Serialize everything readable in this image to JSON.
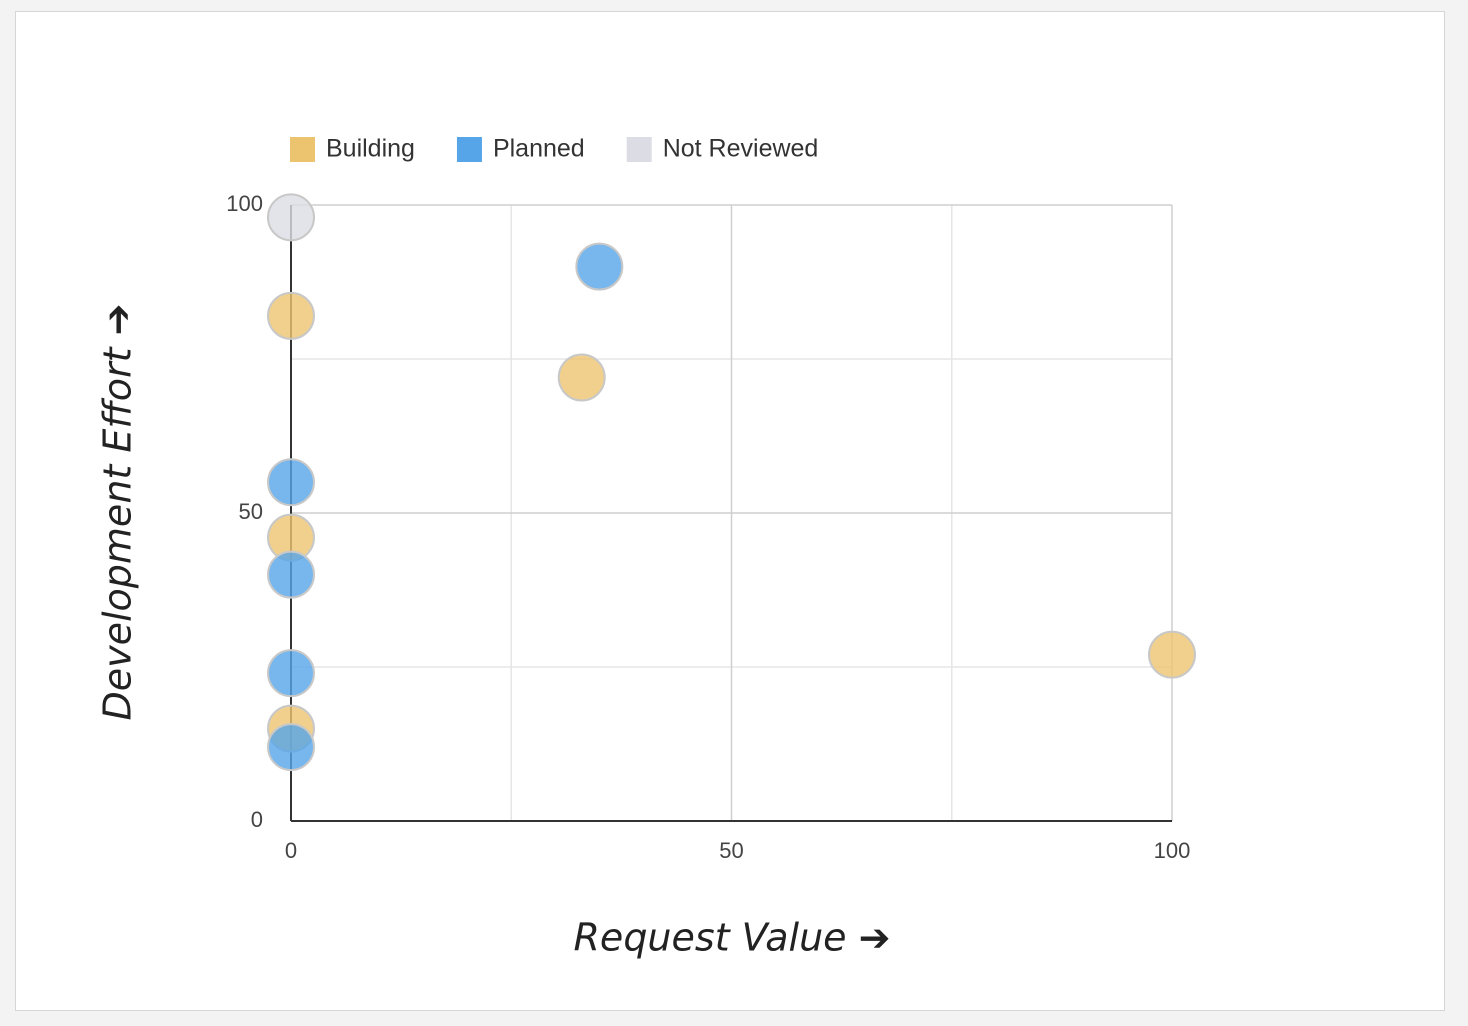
{
  "chart_data": {
    "type": "scatter",
    "x_label": "Request Value ➔",
    "y_label": "Development Effort ➔",
    "xlim": [
      0,
      100
    ],
    "ylim": [
      0,
      100
    ],
    "xticks": [
      0,
      50,
      100
    ],
    "yticks": [
      0,
      50,
      100
    ],
    "xminorticks": [
      25,
      75
    ],
    "yminorticks": [
      25,
      75
    ],
    "grid": true,
    "legend": "top",
    "series": [
      {
        "name": "Building",
        "color": "#ecc46f",
        "x": [
          0,
          33,
          0,
          0,
          100
        ],
        "y": [
          82,
          72,
          46,
          15,
          27
        ]
      },
      {
        "name": "Planned",
        "color": "#55a5e8",
        "x": [
          35,
          0,
          0,
          0,
          0
        ],
        "y": [
          90,
          55,
          40,
          24,
          12
        ]
      },
      {
        "name": "Not Reviewed",
        "color": "#dcdde4",
        "x": [
          0
        ],
        "y": [
          98
        ]
      }
    ]
  }
}
